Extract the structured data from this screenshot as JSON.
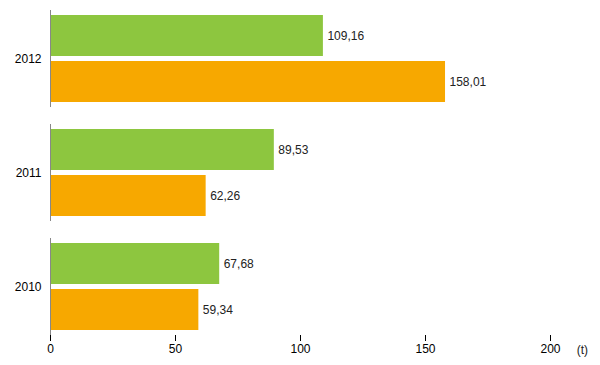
{
  "chart_data": {
    "type": "bar",
    "orientation": "horizontal",
    "categories": [
      "2010",
      "2011",
      "2012"
    ],
    "series": [
      {
        "color": "#8DC63F",
        "values": [
          67.68,
          89.53,
          109.16
        ],
        "value_labels": [
          "67,68",
          "89,53",
          "109,16"
        ]
      },
      {
        "color": "#F7A800",
        "values": [
          59.34,
          62.26,
          158.01
        ],
        "value_labels": [
          "59,34",
          "62,26",
          "158,01"
        ]
      }
    ],
    "xlim": [
      0,
      200
    ],
    "xticks": [
      0,
      50,
      100,
      150,
      200
    ],
    "data_labels": true,
    "annotations": [
      "(t)"
    ]
  }
}
